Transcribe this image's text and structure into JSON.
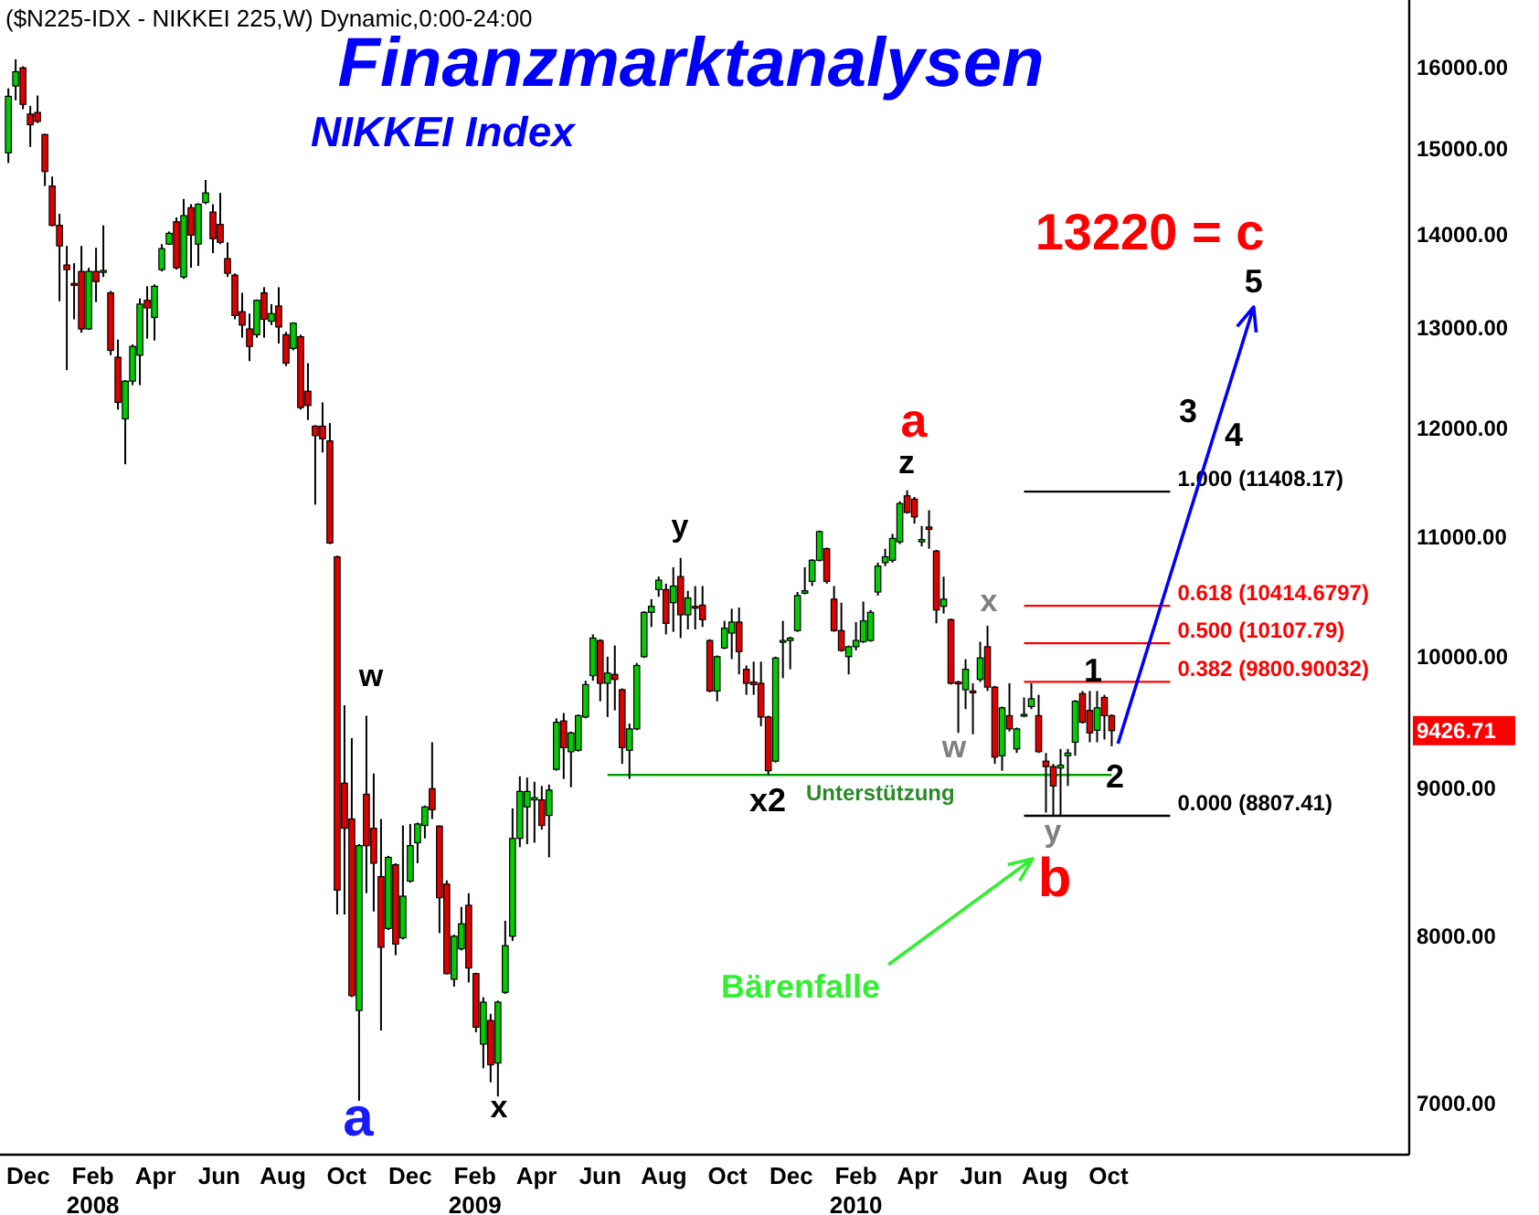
{
  "chart_data": {
    "type": "candlestick",
    "title": "Finanzmarktanalysen",
    "subtitle": "NIKKEI Index",
    "log": true,
    "xlim": [
      "2007-11-18",
      "2011-07-30"
    ],
    "ylim": [
      6720,
      16890
    ],
    "yticks": [
      {
        "value": 7000,
        "label": "7000.00"
      },
      {
        "value": 8000,
        "label": "8000.00"
      },
      {
        "value": 9000,
        "label": "9000.00"
      },
      {
        "value": 10000,
        "label": "10000.00"
      },
      {
        "value": 11000,
        "label": "11000.00"
      },
      {
        "value": 12000,
        "label": "12000.00"
      },
      {
        "value": 13000,
        "label": "13000.00"
      },
      {
        "value": 14000,
        "label": "14000.00"
      },
      {
        "value": 15000,
        "label": "15000.00"
      },
      {
        "value": 16000,
        "label": "16000.00"
      }
    ],
    "xticks": [
      {
        "value": "2007-12-15",
        "label": "Dec"
      },
      {
        "value": "2008-02-15",
        "label": "Feb\n2008"
      },
      {
        "value": "2008-04-15",
        "label": "Apr"
      },
      {
        "value": "2008-06-15",
        "label": "Jun"
      },
      {
        "value": "2008-08-15",
        "label": "Aug"
      },
      {
        "value": "2008-10-15",
        "label": "Oct"
      },
      {
        "value": "2008-12-15",
        "label": "Dec"
      },
      {
        "value": "2009-02-15",
        "label": "Feb\n2009"
      },
      {
        "value": "2009-04-15",
        "label": "Apr"
      },
      {
        "value": "2009-06-15",
        "label": "Jun"
      },
      {
        "value": "2009-08-15",
        "label": "Aug"
      },
      {
        "value": "2009-10-15",
        "label": "Oct"
      },
      {
        "value": "2009-12-15",
        "label": "Dec"
      },
      {
        "value": "2010-02-15",
        "label": "Feb\n2010"
      },
      {
        "value": "2010-04-15",
        "label": "Apr"
      },
      {
        "value": "2010-06-15",
        "label": "Jun"
      },
      {
        "value": "2010-08-15",
        "label": "Aug"
      },
      {
        "value": "2010-10-15",
        "label": "Oct"
      }
    ],
    "x": [
      "2007-11-26",
      "2007-12-03",
      "2007-12-10",
      "2007-12-17",
      "2007-12-24",
      "2007-12-31",
      "2008-01-07",
      "2008-01-14",
      "2008-01-21",
      "2008-01-28",
      "2008-02-04",
      "2008-02-11",
      "2008-02-18",
      "2008-02-25",
      "2008-03-03",
      "2008-03-10",
      "2008-03-17",
      "2008-03-24",
      "2008-03-31",
      "2008-04-07",
      "2008-04-14",
      "2008-04-21",
      "2008-04-28",
      "2008-05-05",
      "2008-05-12",
      "2008-05-19",
      "2008-05-26",
      "2008-06-02",
      "2008-06-09",
      "2008-06-16",
      "2008-06-23",
      "2008-06-30",
      "2008-07-07",
      "2008-07-14",
      "2008-07-21",
      "2008-07-28",
      "2008-08-04",
      "2008-08-11",
      "2008-08-18",
      "2008-08-25",
      "2008-09-01",
      "2008-09-08",
      "2008-09-15",
      "2008-09-22",
      "2008-09-29",
      "2008-10-06",
      "2008-10-13",
      "2008-10-20",
      "2008-10-27",
      "2008-11-03",
      "2008-11-10",
      "2008-11-17",
      "2008-11-24",
      "2008-12-01",
      "2008-12-08",
      "2008-12-15",
      "2008-12-22",
      "2008-12-29",
      "2009-01-05",
      "2009-01-12",
      "2009-01-19",
      "2009-01-26",
      "2009-02-02",
      "2009-02-09",
      "2009-02-16",
      "2009-02-23",
      "2009-03-02",
      "2009-03-09",
      "2009-03-16",
      "2009-03-23",
      "2009-03-30",
      "2009-04-06",
      "2009-04-13",
      "2009-04-20",
      "2009-04-27",
      "2009-05-04",
      "2009-05-11",
      "2009-05-18",
      "2009-05-25",
      "2009-06-01",
      "2009-06-08",
      "2009-06-15",
      "2009-06-22",
      "2009-06-29",
      "2009-07-06",
      "2009-07-13",
      "2009-07-20",
      "2009-07-27",
      "2009-08-03",
      "2009-08-10",
      "2009-08-17",
      "2009-08-24",
      "2009-08-31",
      "2009-09-07",
      "2009-09-14",
      "2009-09-21",
      "2009-09-28",
      "2009-10-05",
      "2009-10-12",
      "2009-10-19",
      "2009-10-26",
      "2009-11-02",
      "2009-11-09",
      "2009-11-16",
      "2009-11-23",
      "2009-11-30",
      "2009-12-07",
      "2009-12-14",
      "2009-12-21",
      "2009-12-28",
      "2010-01-04",
      "2010-01-11",
      "2010-01-18",
      "2010-01-25",
      "2010-02-01",
      "2010-02-08",
      "2010-02-15",
      "2010-02-22",
      "2010-03-01",
      "2010-03-08",
      "2010-03-15",
      "2010-03-22",
      "2010-03-29",
      "2010-04-05",
      "2010-04-12",
      "2010-04-19",
      "2010-04-26",
      "2010-05-03",
      "2010-05-10",
      "2010-05-17",
      "2010-05-24",
      "2010-05-31",
      "2010-06-07",
      "2010-06-14",
      "2010-06-21",
      "2010-06-28",
      "2010-07-05",
      "2010-07-12",
      "2010-07-19",
      "2010-07-26",
      "2010-08-02",
      "2010-08-09",
      "2010-08-16",
      "2010-08-23",
      "2010-08-30",
      "2010-09-06",
      "2010-09-13",
      "2010-09-20",
      "2010-09-27",
      "2010-10-04",
      "2010-10-11",
      "2010-10-18"
    ],
    "ohlc": [
      [
        14950,
        15740,
        14830,
        15640
      ],
      [
        15770,
        16110,
        15590,
        15950
      ],
      [
        16000,
        16020,
        15480,
        15540
      ],
      [
        15420,
        15520,
        15020,
        15290
      ],
      [
        15440,
        15650,
        15310,
        15330
      ],
      [
        15170,
        15180,
        14560,
        14730
      ],
      [
        14560,
        14670,
        14100,
        14110
      ],
      [
        14110,
        14240,
        13280,
        13880
      ],
      [
        13670,
        13880,
        12570,
        13620
      ],
      [
        13470,
        13690,
        13090,
        13450
      ],
      [
        13600,
        13880,
        12950,
        12990
      ],
      [
        12990,
        13640,
        12980,
        13600
      ],
      [
        13600,
        13860,
        13270,
        13490
      ],
      [
        13590,
        14110,
        13540,
        13610
      ],
      [
        13370,
        13390,
        12720,
        12770
      ],
      [
        12700,
        12880,
        12180,
        12250
      ],
      [
        12090,
        12470,
        11660,
        12460
      ],
      [
        12460,
        12830,
        12420,
        12810
      ],
      [
        12720,
        13310,
        12420,
        13250
      ],
      [
        13290,
        13440,
        12890,
        13210
      ],
      [
        13110,
        13460,
        12870,
        13440
      ],
      [
        13620,
        13900,
        13600,
        13850
      ],
      [
        13900,
        14040,
        13890,
        14020
      ],
      [
        14150,
        14200,
        13620,
        13640
      ],
      [
        13540,
        14410,
        13520,
        14220
      ],
      [
        14310,
        14350,
        13640,
        14000
      ],
      [
        13900,
        14360,
        13660,
        14350
      ],
      [
        14370,
        14630,
        14350,
        14480
      ],
      [
        14260,
        14350,
        13800,
        13960
      ],
      [
        14120,
        14480,
        13900,
        13920
      ],
      [
        13740,
        13920,
        13540,
        13580
      ],
      [
        13560,
        13580,
        13090,
        13130
      ],
      [
        13170,
        13370,
        12900,
        13030
      ],
      [
        12990,
        13150,
        12660,
        12810
      ],
      [
        12930,
        13300,
        12900,
        13290
      ],
      [
        13370,
        13430,
        12900,
        13090
      ],
      [
        13070,
        13250,
        13030,
        13150
      ],
      [
        13230,
        13430,
        12840,
        13010
      ],
      [
        12930,
        12960,
        12610,
        12640
      ],
      [
        12790,
        13060,
        12770,
        13050
      ],
      [
        12910,
        12930,
        12180,
        12200
      ],
      [
        12360,
        12640,
        12080,
        12220
      ],
      [
        12020,
        12030,
        11290,
        11930
      ],
      [
        12020,
        12250,
        11770,
        11900
      ],
      [
        11880,
        12050,
        10940,
        10950
      ],
      [
        10830,
        10840,
        8140,
        8300
      ],
      [
        9040,
        9620,
        8140,
        8720
      ],
      [
        8785,
        9370,
        7620,
        7630
      ],
      [
        7540,
        8610,
        7015,
        8600
      ],
      [
        8960,
        9540,
        8280,
        8600
      ],
      [
        8720,
        9110,
        8160,
        8480
      ],
      [
        8390,
        8785,
        7420,
        7930
      ],
      [
        8050,
        8530,
        8040,
        8520
      ],
      [
        8470,
        8480,
        7880,
        7950
      ],
      [
        7990,
        8740,
        7980,
        8260
      ],
      [
        8360,
        8750,
        8350,
        8600
      ],
      [
        8620,
        8760,
        8480,
        8750
      ],
      [
        8740,
        8880,
        8650,
        8870
      ],
      [
        9000,
        9340,
        8785,
        8850
      ],
      [
        8735,
        8740,
        8020,
        8250
      ],
      [
        8340,
        8365,
        7760,
        7765
      ],
      [
        7730,
        8010,
        7685,
        8000
      ],
      [
        7920,
        8190,
        7910,
        8080
      ],
      [
        8200,
        8280,
        7710,
        7800
      ],
      [
        7765,
        7770,
        7410,
        7440
      ],
      [
        7340,
        7620,
        7200,
        7590
      ],
      [
        7480,
        7520,
        7120,
        7220
      ],
      [
        7230,
        7600,
        7040,
        7590
      ],
      [
        7650,
        8100,
        7640,
        7940
      ],
      [
        8000,
        8860,
        7970,
        8650
      ],
      [
        8650,
        9090,
        8590,
        8980
      ],
      [
        8870,
        9080,
        8610,
        8980
      ],
      [
        8920,
        9050,
        8620,
        8935
      ],
      [
        8920,
        9020,
        8710,
        8740
      ],
      [
        8810,
        9030,
        8520,
        8990
      ],
      [
        9140,
        9520,
        9130,
        9490
      ],
      [
        9500,
        9560,
        9070,
        9300
      ],
      [
        9270,
        9420,
        9010,
        9410
      ],
      [
        9280,
        9550,
        9270,
        9540
      ],
      [
        9530,
        9810,
        9520,
        9780
      ],
      [
        9850,
        10180,
        9810,
        10150
      ],
      [
        10130,
        10140,
        9650,
        9790
      ],
      [
        9790,
        10000,
        9530,
        9870
      ],
      [
        9860,
        10090,
        9580,
        9820
      ],
      [
        9740,
        9750,
        9180,
        9300
      ],
      [
        9280,
        9480,
        9070,
        9440
      ],
      [
        9440,
        9950,
        9430,
        9930
      ],
      [
        10000,
        10370,
        9990,
        10360
      ],
      [
        10360,
        10470,
        10240,
        10410
      ],
      [
        10550,
        10660,
        10490,
        10630
      ],
      [
        10550,
        10600,
        10180,
        10270
      ],
      [
        10440,
        10740,
        10200,
        10580
      ],
      [
        10660,
        10820,
        10150,
        10340
      ],
      [
        10340,
        10540,
        10220,
        10480
      ],
      [
        10410,
        10580,
        10220,
        10400
      ],
      [
        10420,
        10580,
        10240,
        10300
      ],
      [
        10130,
        10140,
        9720,
        9730
      ],
      [
        9730,
        10010,
        9650,
        10000
      ],
      [
        10070,
        10290,
        10060,
        10230
      ],
      [
        10190,
        10390,
        9980,
        10280
      ],
      [
        10280,
        10400,
        9860,
        10040
      ],
      [
        9900,
        9930,
        9700,
        9790
      ],
      [
        9800,
        9960,
        9700,
        9780
      ],
      [
        9790,
        9960,
        9460,
        9530
      ],
      [
        9530,
        9540,
        9100,
        9130
      ],
      [
        9200,
        10000,
        9190,
        9990
      ],
      [
        10120,
        10290,
        9830,
        10130
      ],
      [
        10130,
        10160,
        9900,
        10150
      ],
      [
        10210,
        10530,
        10200,
        10500
      ],
      [
        10520,
        10740,
        10510,
        10540
      ],
      [
        10620,
        10810,
        10580,
        10800
      ],
      [
        10800,
        11060,
        10790,
        11050
      ],
      [
        10900,
        10910,
        10600,
        10620
      ],
      [
        10470,
        10580,
        10200,
        10210
      ],
      [
        10210,
        10440,
        10040,
        10050
      ],
      [
        10000,
        10090,
        9860,
        10080
      ],
      [
        10080,
        10280,
        10050,
        10130
      ],
      [
        10120,
        10450,
        10110,
        10290
      ],
      [
        10130,
        10380,
        10120,
        10360
      ],
      [
        10530,
        10780,
        10500,
        10750
      ],
      [
        10780,
        10900,
        10750,
        10830
      ],
      [
        10800,
        11030,
        10780,
        10990
      ],
      [
        10960,
        11320,
        10940,
        11300
      ],
      [
        11370,
        11420,
        11210,
        11220
      ],
      [
        11340,
        11360,
        11120,
        11180
      ],
      [
        10960,
        11100,
        10920,
        10980
      ],
      [
        11090,
        11240,
        10900,
        11070
      ],
      [
        10880,
        10890,
        10270,
        10380
      ],
      [
        10410,
        10660,
        10350,
        10470
      ],
      [
        10300,
        10310,
        9780,
        9790
      ],
      [
        9800,
        9810,
        9410,
        9790
      ],
      [
        9740,
        9980,
        9590,
        9900
      ],
      [
        9730,
        9790,
        9400,
        9720
      ],
      [
        9820,
        10120,
        9800,
        9990
      ],
      [
        10080,
        10250,
        9730,
        9760
      ],
      [
        9760,
        9770,
        9180,
        9230
      ],
      [
        9240,
        9610,
        9130,
        9600
      ],
      [
        9540,
        9790,
        9420,
        9440
      ],
      [
        9290,
        9450,
        9260,
        9440
      ],
      [
        9540,
        9680,
        9530,
        9550
      ],
      [
        9610,
        9790,
        9590,
        9670
      ],
      [
        9540,
        9700,
        9260,
        9270
      ],
      [
        9200,
        9260,
        8830,
        9160
      ],
      [
        9160,
        9180,
        8810,
        9020
      ],
      [
        9150,
        9290,
        8810,
        9170
      ],
      [
        9240,
        9290,
        9020,
        9260
      ],
      [
        9340,
        9660,
        9240,
        9650
      ],
      [
        9710,
        9730,
        9480,
        9490
      ],
      [
        9580,
        9730,
        9340,
        9410
      ],
      [
        9430,
        9730,
        9340,
        9600
      ],
      [
        9680,
        9700,
        9360,
        9540
      ],
      [
        9540,
        9550,
        9310,
        9426.71
      ]
    ],
    "series": [
      {
        "type": "line",
        "color": "#00a000",
        "x": [
          "2009-06-22",
          "2010-10-18"
        ],
        "values": [
          9100,
          9100
        ]
      },
      {
        "type": "line",
        "name": "1.000 (11408.17)",
        "color": "#000000",
        "x": [
          "2010-07-26",
          "2010-12-13"
        ],
        "values": [
          11408.17,
          11408.17
        ]
      },
      {
        "type": "line",
        "name": "0.618 (10414.6797)",
        "color": "#ff0000",
        "x": [
          "2010-07-26",
          "2010-12-13"
        ],
        "values": [
          10414.6797,
          10414.6797
        ]
      },
      {
        "type": "line",
        "name": "0.500 (10107.79)",
        "color": "#ff0000",
        "x": [
          "2010-07-26",
          "2010-12-13"
        ],
        "values": [
          10107.79,
          10107.79
        ]
      },
      {
        "type": "line",
        "name": "0.382 (9800.90032)",
        "color": "#ff0000",
        "x": [
          "2010-07-26",
          "2010-12-13"
        ],
        "values": [
          9800.90032,
          9800.90032
        ]
      },
      {
        "type": "line",
        "name": "0.000 (8807.41)",
        "color": "#000000",
        "x": [
          "2010-07-26",
          "2010-12-13"
        ],
        "values": [
          8807.41,
          8807.41
        ]
      },
      {
        "type": "line",
        "color": "#0000ff",
        "x": [
          "2010-10-24",
          "2011-03-03"
        ],
        "values": [
          9330,
          13220
        ]
      }
    ],
    "annotations": [
      "($N225-IDX - NIKKEI 225,W) Dynamic,0:00-24:00",
      "a",
      "w",
      "x",
      "y",
      "x2",
      "z",
      "a",
      "x",
      "w",
      "y",
      "b",
      "1",
      "2",
      "3",
      "4",
      {
        "text": "5",
        "x": "2011-03-03",
        "y": 13220
      },
      "13220 = c",
      "Bärenfalle",
      "Unterstützung",
      "9426.71"
    ]
  }
}
